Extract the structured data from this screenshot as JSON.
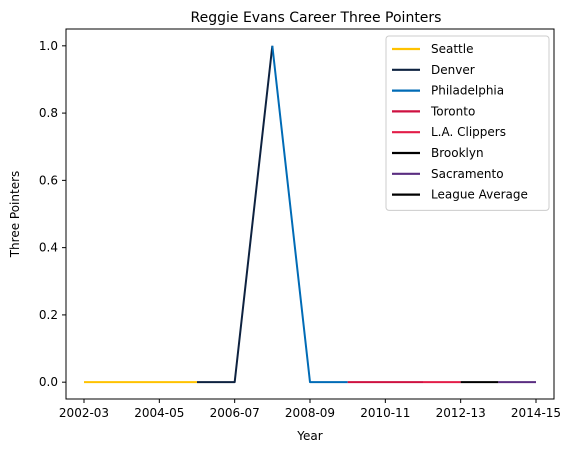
{
  "chart_data": {
    "type": "line",
    "title": "Reggie Evans Career Three Pointers",
    "xlabel": "Year",
    "ylabel": "Three Pointers",
    "x_tick_labels": [
      "2002-03",
      "2004-05",
      "2006-07",
      "2008-09",
      "2010-11",
      "2012-13",
      "2014-15"
    ],
    "y_tick_labels": [
      "0.0",
      "0.2",
      "0.4",
      "0.6",
      "0.8",
      "1.0"
    ],
    "x_categories": [
      "2002-03",
      "2003-04",
      "2004-05",
      "2005-06",
      "2006-07",
      "2007-08",
      "2008-09",
      "2009-10",
      "2010-11",
      "2011-12",
      "2012-13",
      "2013-14",
      "2014-15"
    ],
    "ylim": [
      -0.05,
      1.05
    ],
    "grid": false,
    "legend_position": "upper-right",
    "series": [
      {
        "name": "Seattle",
        "color": "#FFC200",
        "x": [
          "2002-03",
          "2003-04",
          "2004-05",
          "2005-06"
        ],
        "y": [
          0,
          0,
          0,
          0
        ]
      },
      {
        "name": "Denver",
        "color": "#0E2240",
        "x": [
          "2005-06",
          "2006-07",
          "2007-08"
        ],
        "y": [
          0,
          0,
          1
        ]
      },
      {
        "name": "Philadelphia",
        "color": "#006BB6",
        "x": [
          "2007-08",
          "2008-09",
          "2009-10"
        ],
        "y": [
          1,
          0,
          0
        ]
      },
      {
        "name": "Toronto",
        "color": "#CE1141",
        "x": [
          "2009-10",
          "2010-11",
          "2011-12"
        ],
        "y": [
          0,
          0,
          0
        ]
      },
      {
        "name": "L.A. Clippers",
        "color": "#E31D48",
        "x": [
          "2011-12",
          "2012-13"
        ],
        "y": [
          0,
          0
        ]
      },
      {
        "name": "Brooklyn",
        "color": "#000000",
        "x": [
          "2012-13",
          "2013-14"
        ],
        "y": [
          0,
          0
        ]
      },
      {
        "name": "Sacramento",
        "color": "#5A2D81",
        "x": [
          "2013-14",
          "2014-15"
        ],
        "y": [
          0,
          0
        ]
      },
      {
        "name": "League Average",
        "color": "#000000",
        "x": [],
        "y": []
      }
    ]
  }
}
